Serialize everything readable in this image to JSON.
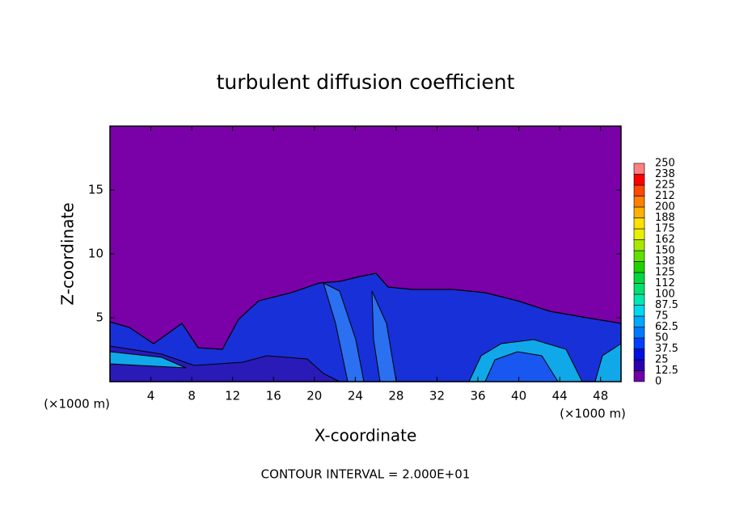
{
  "chart_data": {
    "type": "contour",
    "title": "turbulent diffusion coefficient",
    "x_label": "X-coordinate",
    "y_label": "Z-coordinate",
    "x_unit": "(×1000 m)",
    "annotation": "CONTOUR INTERVAL = 2.000E+01",
    "xlim": [
      0,
      50
    ],
    "ylim": [
      0,
      20
    ],
    "xticks": [
      4,
      8,
      12,
      16,
      20,
      24,
      28,
      32,
      36,
      40,
      44,
      48
    ],
    "yticks": [
      5,
      10,
      15
    ],
    "colorbar": {
      "levels": [
        0,
        12.5,
        25,
        37.5,
        50,
        62.5,
        75,
        87.5,
        100,
        112,
        125,
        138,
        150,
        162,
        175,
        188,
        200,
        212,
        225,
        238,
        250
      ],
      "colors": [
        "#7000a8",
        "#2a00b0",
        "#0010e0",
        "#0040ff",
        "#0078ff",
        "#00a8ff",
        "#00d8f0",
        "#00e8b0",
        "#00e070",
        "#00d840",
        "#20d000",
        "#60e000",
        "#a8e800",
        "#e8f000",
        "#ffe000",
        "#ffb000",
        "#ff8000",
        "#ff4800",
        "#ff0000",
        "#ff8080"
      ]
    }
  }
}
